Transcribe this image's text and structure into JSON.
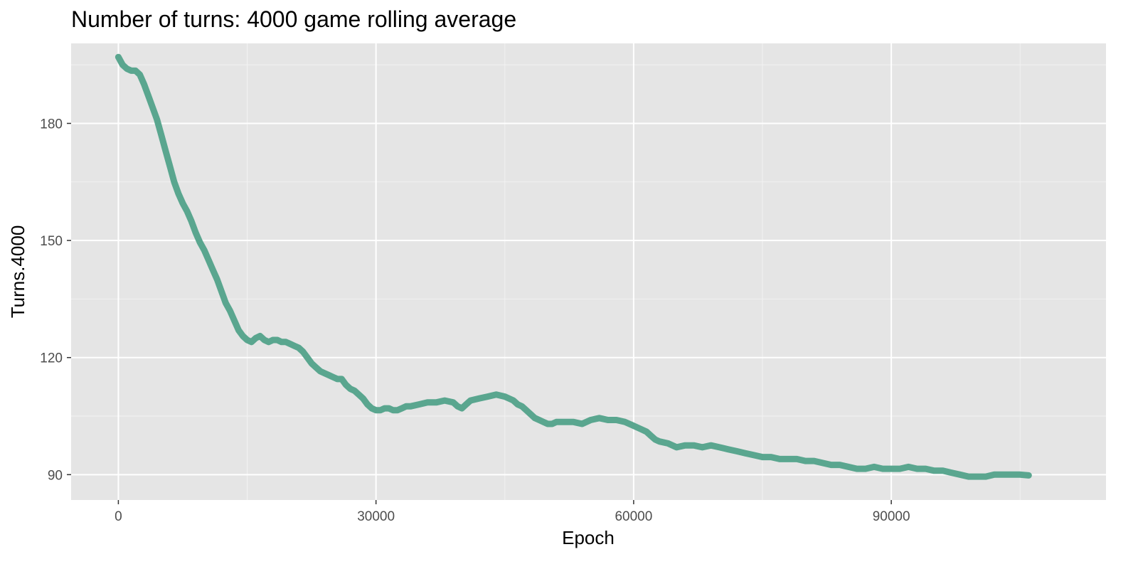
{
  "chart_data": {
    "type": "line",
    "title": "Number of turns: 4000 game rolling average",
    "xlabel": "Epoch",
    "ylabel": "Turns.4000",
    "xlim": [
      -5500,
      115000
    ],
    "ylim": [
      83.5,
      200.5
    ],
    "xticks": [
      0,
      30000,
      60000,
      90000
    ],
    "xtick_labels": [
      "0",
      "30000",
      "60000",
      "90000"
    ],
    "yticks": [
      90,
      120,
      150,
      180
    ],
    "ytick_labels": [
      "90",
      "120",
      "150",
      "180"
    ],
    "grid": true,
    "legend": "none",
    "series": [
      {
        "color": "#5aa68f",
        "x": [
          0,
          250,
          500,
          1000,
          1500,
          2000,
          2500,
          3000,
          3500,
          4000,
          4500,
          5000,
          5500,
          6000,
          6500,
          7000,
          7500,
          8000,
          8500,
          9000,
          9500,
          10000,
          10500,
          11000,
          11500,
          12000,
          12500,
          13000,
          13500,
          14000,
          14500,
          15000,
          15500,
          16000,
          16500,
          17000,
          17500,
          18000,
          18500,
          19000,
          19500,
          20000,
          20500,
          21000,
          21500,
          22000,
          22500,
          23000,
          23500,
          24000,
          24500,
          25000,
          25500,
          26000,
          26500,
          27000,
          27500,
          28000,
          28500,
          29000,
          29500,
          30000,
          30500,
          31000,
          31500,
          32000,
          32500,
          33000,
          33500,
          34000,
          35000,
          36000,
          37000,
          38000,
          39000,
          39500,
          40000,
          40500,
          41000,
          42000,
          43000,
          44000,
          45000,
          45500,
          46000,
          46500,
          47000,
          47500,
          48000,
          48500,
          49000,
          49500,
          50000,
          50500,
          51000,
          52000,
          53000,
          54000,
          55000,
          56000,
          57000,
          58000,
          59000,
          60000,
          61000,
          61500,
          62000,
          62500,
          63000,
          64000,
          65000,
          66000,
          67000,
          68000,
          69000,
          70000,
          71000,
          72000,
          73000,
          74000,
          75000,
          76000,
          77000,
          78000,
          79000,
          80000,
          81000,
          82000,
          83000,
          84000,
          85000,
          86000,
          87000,
          88000,
          89000,
          90000,
          91000,
          92000,
          93000,
          94000,
          95000,
          96000,
          97000,
          98000,
          99000,
          100000,
          101000,
          102000,
          103000,
          104000,
          105000,
          106000
        ],
        "y": [
          197,
          196,
          195,
          194,
          193.5,
          193.5,
          192.5,
          190,
          187,
          184,
          181,
          177,
          173,
          169,
          165,
          162,
          159.5,
          157.5,
          155,
          152,
          149.5,
          147.5,
          145,
          142.5,
          140,
          137,
          134,
          132,
          129.5,
          127,
          125.5,
          124.5,
          124,
          125,
          125.5,
          124.5,
          124,
          124.5,
          124.5,
          124,
          124,
          123.5,
          123,
          122.5,
          121.5,
          120,
          118.5,
          117.5,
          116.5,
          116,
          115.5,
          115,
          114.5,
          114.5,
          113,
          112,
          111.5,
          110.5,
          109.5,
          108,
          107,
          106.5,
          106.5,
          107,
          107,
          106.5,
          106.5,
          107,
          107.5,
          107.5,
          108,
          108.5,
          108.5,
          109,
          108.5,
          107.5,
          107,
          108,
          109,
          109.5,
          110,
          110.5,
          110,
          109.5,
          109,
          108,
          107.5,
          106.5,
          105.5,
          104.5,
          104,
          103.5,
          103,
          103,
          103.5,
          103.5,
          103.5,
          103,
          104,
          104.5,
          104,
          104,
          103.5,
          102.5,
          101.5,
          101,
          100,
          99,
          98.5,
          98,
          97,
          97.5,
          97.5,
          97,
          97.5,
          97,
          96.5,
          96,
          95.5,
          95,
          94.5,
          94.5,
          94,
          94,
          94,
          93.5,
          93.5,
          93,
          92.5,
          92.5,
          92,
          91.5,
          91.5,
          92,
          91.5,
          91.5,
          91.5,
          92,
          91.5,
          91.5,
          91,
          91,
          90.5,
          90,
          89.5,
          89.5,
          89.5,
          90,
          90,
          90,
          90,
          89.8
        ]
      }
    ]
  }
}
